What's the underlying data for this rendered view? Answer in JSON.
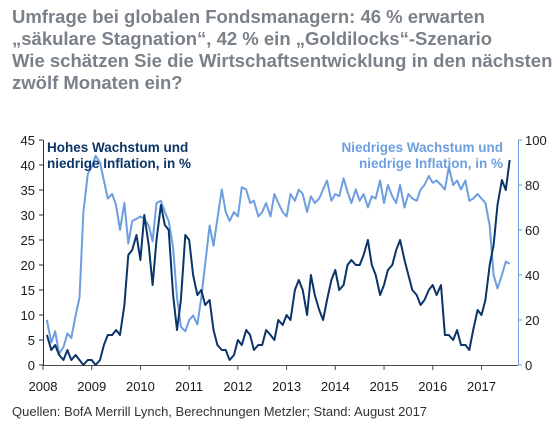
{
  "title_lines": [
    "Umfrage bei globalen Fondsmanagern: 46 % erwarten",
    "„säkulare Stagnation“, 42 % ein „Goldilocks“-Szenario"
  ],
  "subtitle_lines": [
    "Wie schätzen Sie die Wirtschaftsentwicklung in den nächsten",
    "zwölf Monaten ein?"
  ],
  "source": "Quellen: BofA Merrill Lynch, Berechnungen Metzler; Stand: August 2017",
  "colors": {
    "dark": "#0b3567",
    "light": "#6d9ee0",
    "title": "#7a8189"
  },
  "chart_data": {
    "type": "line",
    "x_ticks": [
      "2008",
      "2009",
      "2010",
      "2011",
      "2012",
      "2013",
      "2014",
      "2015",
      "2016",
      "2017"
    ],
    "xlim": [
      2008.0,
      2017.75
    ],
    "y_left": {
      "lim": [
        0,
        45
      ],
      "ticks": [
        "0",
        "5",
        "10",
        "15",
        "20",
        "25",
        "30",
        "35",
        "40",
        "45"
      ]
    },
    "y_right": {
      "lim": [
        0,
        100
      ],
      "ticks": [
        "0",
        "20",
        "40",
        "60",
        "80",
        "100"
      ]
    },
    "grid": false,
    "series": [
      {
        "name": "Hohes Wachstum und niedrige Inflation, in %",
        "axis": "left",
        "color": "#0b3567",
        "x": [
          2008.08,
          2008.17,
          2008.25,
          2008.33,
          2008.42,
          2008.5,
          2008.58,
          2008.67,
          2008.75,
          2008.83,
          2008.92,
          2009.0,
          2009.08,
          2009.17,
          2009.25,
          2009.33,
          2009.42,
          2009.5,
          2009.58,
          2009.67,
          2009.75,
          2009.83,
          2009.92,
          2010.0,
          2010.08,
          2010.17,
          2010.25,
          2010.33,
          2010.42,
          2010.5,
          2010.58,
          2010.67,
          2010.75,
          2010.83,
          2010.92,
          2011.0,
          2011.08,
          2011.17,
          2011.25,
          2011.33,
          2011.42,
          2011.5,
          2011.58,
          2011.67,
          2011.75,
          2011.83,
          2011.92,
          2012.0,
          2012.08,
          2012.17,
          2012.25,
          2012.33,
          2012.42,
          2012.5,
          2012.58,
          2012.67,
          2012.75,
          2012.83,
          2012.92,
          2013.0,
          2013.08,
          2013.17,
          2013.25,
          2013.33,
          2013.42,
          2013.5,
          2013.58,
          2013.67,
          2013.75,
          2013.83,
          2013.92,
          2014.0,
          2014.08,
          2014.17,
          2014.25,
          2014.33,
          2014.42,
          2014.5,
          2014.58,
          2014.67,
          2014.75,
          2014.83,
          2014.92,
          2015.0,
          2015.08,
          2015.17,
          2015.25,
          2015.33,
          2015.42,
          2015.5,
          2015.58,
          2015.67,
          2015.75,
          2015.83,
          2015.92,
          2016.0,
          2016.08,
          2016.17,
          2016.25,
          2016.33,
          2016.42,
          2016.5,
          2016.58,
          2016.67,
          2016.75,
          2016.83,
          2016.92,
          2017.0,
          2017.08,
          2017.17,
          2017.25,
          2017.33,
          2017.42,
          2017.5,
          2017.58
        ],
        "values": [
          6,
          3,
          4,
          2,
          1,
          3,
          1,
          2,
          1,
          0,
          1,
          1,
          0,
          1,
          4,
          6,
          6,
          7,
          6,
          12,
          22,
          23,
          26,
          21,
          30,
          24,
          16,
          25,
          32,
          28,
          27,
          14,
          7,
          13,
          26,
          25,
          18,
          14,
          15,
          12,
          13,
          7,
          4,
          3,
          3,
          1,
          2,
          5,
          4,
          7,
          6,
          3,
          4,
          4,
          7,
          6,
          5,
          9,
          8,
          10,
          9,
          15,
          17,
          15,
          10,
          18,
          14,
          11,
          9,
          13,
          17,
          19,
          15,
          16,
          20,
          21,
          20,
          20,
          22,
          25,
          20,
          18,
          14,
          16,
          19,
          20,
          23,
          25,
          21,
          18,
          15,
          14,
          12,
          13,
          15,
          16,
          14,
          16,
          6,
          6,
          5,
          7,
          4,
          4,
          3,
          7,
          11,
          10,
          13,
          20,
          24,
          32,
          37,
          35,
          41
        ]
      },
      {
        "name": "Niedriges Wachstum und niedrige Inflation, in %",
        "axis": "right",
        "color": "#6d9ee0",
        "x": [
          2008.08,
          2008.17,
          2008.25,
          2008.33,
          2008.42,
          2008.5,
          2008.58,
          2008.67,
          2008.75,
          2008.83,
          2008.92,
          2009.0,
          2009.08,
          2009.17,
          2009.25,
          2009.33,
          2009.42,
          2009.5,
          2009.58,
          2009.67,
          2009.75,
          2009.83,
          2009.92,
          2010.0,
          2010.08,
          2010.17,
          2010.25,
          2010.33,
          2010.42,
          2010.5,
          2010.58,
          2010.67,
          2010.75,
          2010.83,
          2010.92,
          2011.0,
          2011.08,
          2011.17,
          2011.25,
          2011.33,
          2011.42,
          2011.5,
          2011.58,
          2011.67,
          2011.75,
          2011.83,
          2011.92,
          2012.0,
          2012.08,
          2012.17,
          2012.25,
          2012.33,
          2012.42,
          2012.5,
          2012.58,
          2012.67,
          2012.75,
          2012.83,
          2012.92,
          2013.0,
          2013.08,
          2013.17,
          2013.25,
          2013.33,
          2013.42,
          2013.5,
          2013.58,
          2013.67,
          2013.75,
          2013.83,
          2013.92,
          2014.0,
          2014.08,
          2014.17,
          2014.25,
          2014.33,
          2014.42,
          2014.5,
          2014.58,
          2014.67,
          2014.75,
          2014.83,
          2014.92,
          2015.0,
          2015.08,
          2015.17,
          2015.25,
          2015.33,
          2015.42,
          2015.5,
          2015.58,
          2015.67,
          2015.75,
          2015.83,
          2015.92,
          2016.0,
          2016.08,
          2016.17,
          2016.25,
          2016.33,
          2016.42,
          2016.5,
          2016.58,
          2016.67,
          2016.75,
          2016.83,
          2016.92,
          2017.0,
          2017.08,
          2017.17,
          2017.25,
          2017.33,
          2017.42,
          2017.5,
          2017.58
        ],
        "values": [
          20,
          10,
          15,
          5,
          8,
          14,
          12,
          22,
          30,
          68,
          85,
          88,
          93,
          90,
          82,
          74,
          76,
          71,
          60,
          72,
          54,
          64,
          65,
          66,
          65,
          62,
          55,
          72,
          73,
          68,
          64,
          52,
          30,
          17,
          15,
          20,
          22,
          18,
          30,
          45,
          62,
          53,
          65,
          78,
          68,
          64,
          68,
          66,
          79,
          78,
          72,
          73,
          66,
          68,
          72,
          66,
          76,
          72,
          68,
          66,
          76,
          73,
          78,
          76,
          68,
          75,
          72,
          74,
          78,
          82,
          73,
          76,
          75,
          83,
          77,
          72,
          78,
          73,
          76,
          70,
          75,
          74,
          82,
          72,
          80,
          75,
          72,
          80,
          70,
          76,
          74,
          73,
          78,
          80,
          84,
          81,
          82,
          80,
          78,
          88,
          80,
          82,
          78,
          82,
          73,
          74,
          76,
          74,
          72,
          62,
          40,
          34,
          40,
          46,
          45
        ]
      }
    ],
    "annotations": [
      {
        "text": [
          "Hohes Wachstum und",
          "niedrige Inflation, in %"
        ],
        "series": 0
      },
      {
        "text": [
          "Niedriges Wachstum und",
          "niedrige Inflation, in %"
        ],
        "series": 1
      }
    ]
  }
}
